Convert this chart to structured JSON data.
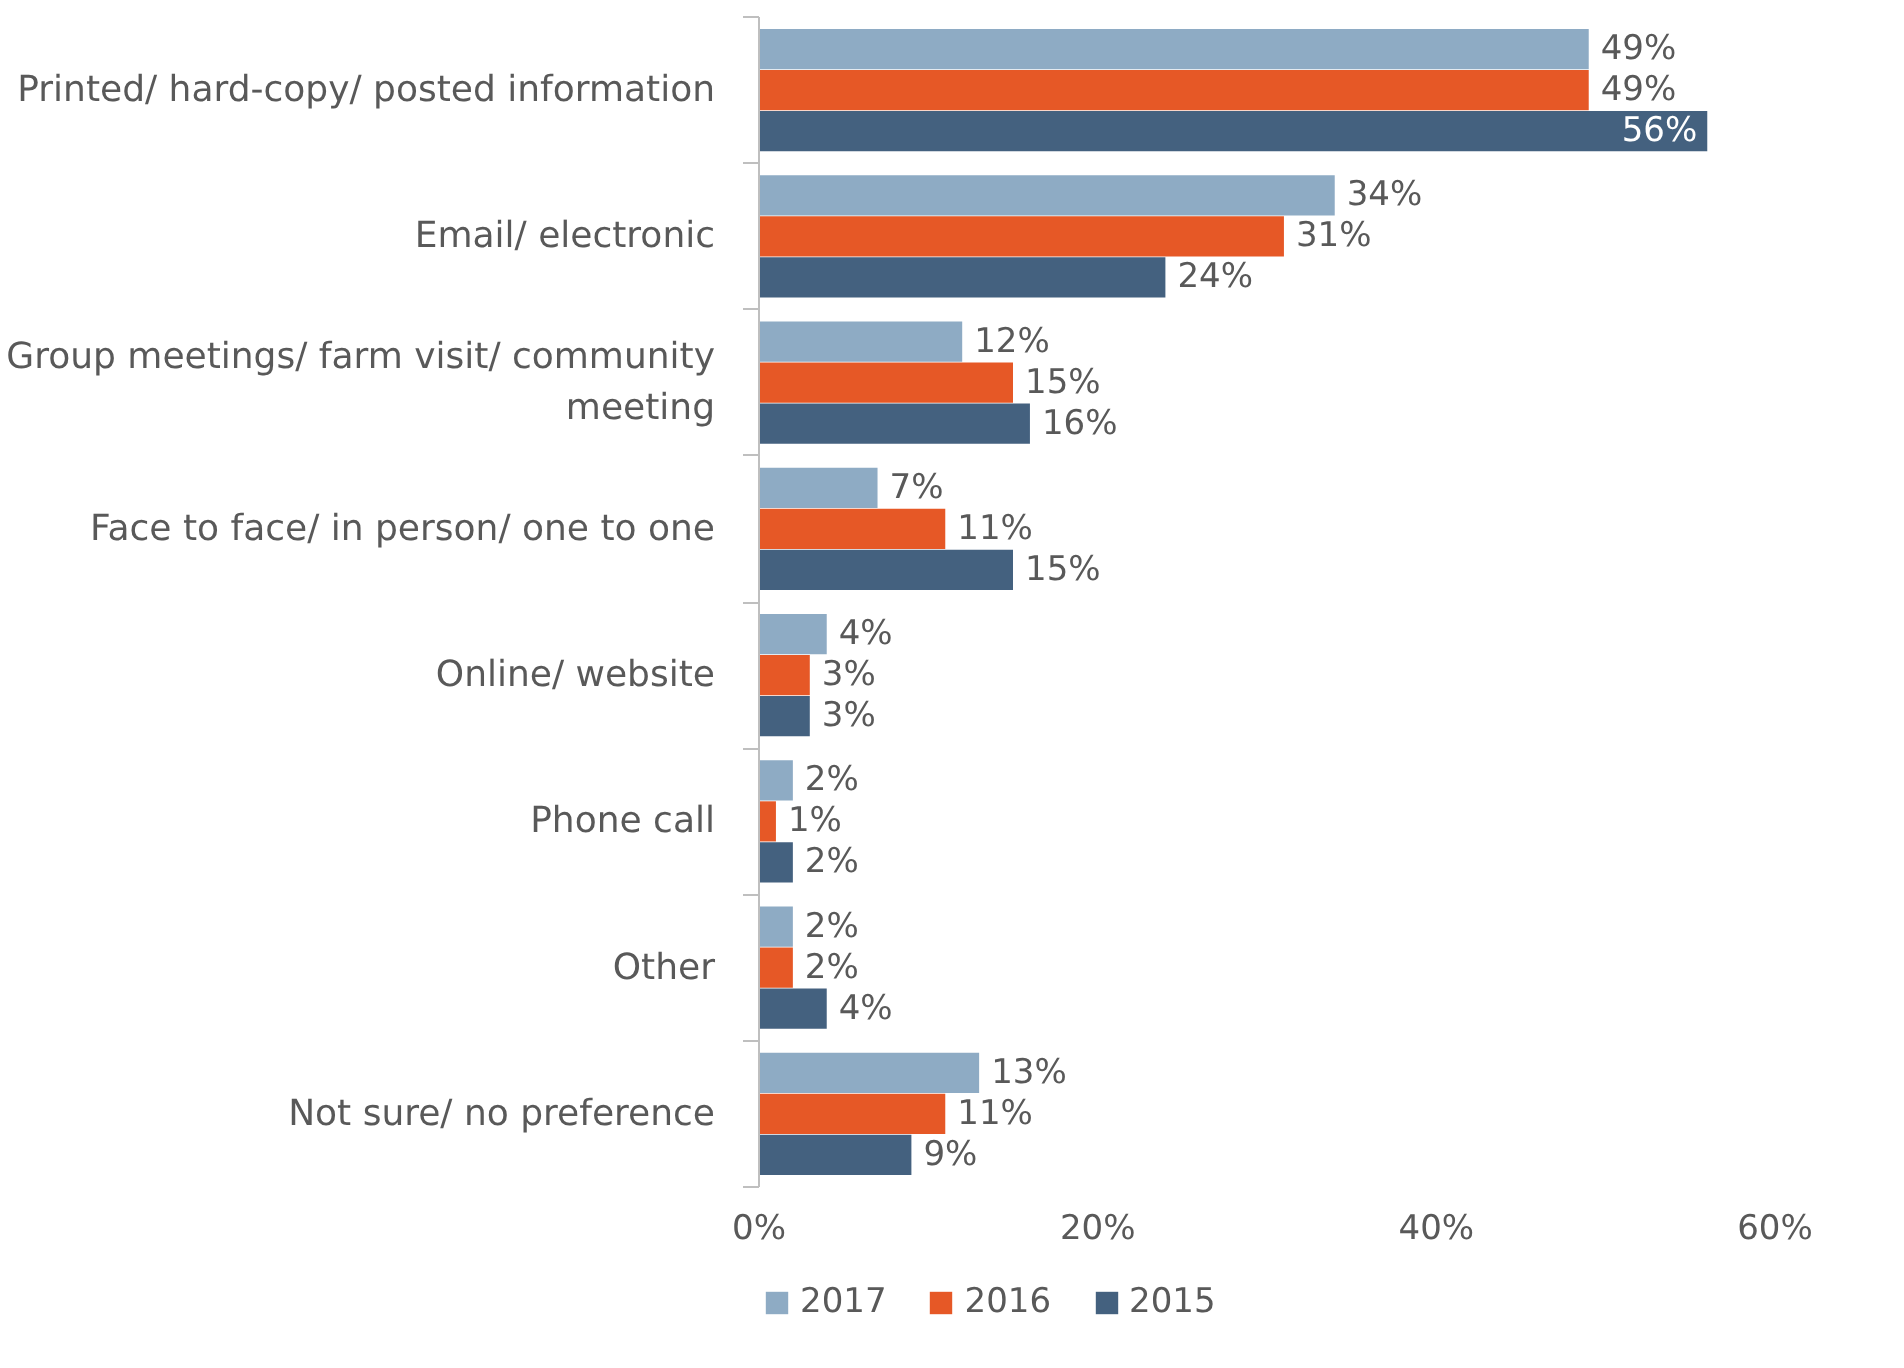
{
  "chart_data": {
    "type": "bar",
    "orientation": "horizontal",
    "categories": [
      "Printed/ hard-copy/ posted information",
      "Email/ electronic",
      "Group meetings/ farm visit/ community\nmeeting",
      "Face to face/ in person/ one to one",
      "Online/ website",
      "Phone call",
      "Other",
      "Not sure/ no preference"
    ],
    "series": [
      {
        "name": "2017",
        "color": "#8eabc4",
        "values": [
          49,
          34,
          12,
          7,
          4,
          2,
          2,
          13
        ],
        "value_labels": [
          "49%",
          "34%",
          "12%",
          "7%",
          "4%",
          "2%",
          "2%",
          "13%"
        ]
      },
      {
        "name": "2016",
        "color": "#e65826",
        "values": [
          49,
          31,
          15,
          11,
          3,
          1,
          2,
          11
        ],
        "value_labels": [
          "49%",
          "31%",
          "15%",
          "11%",
          "3%",
          "1%",
          "2%",
          "11%"
        ]
      },
      {
        "name": "2015",
        "color": "#44617f",
        "values": [
          56,
          24,
          16,
          15,
          3,
          2,
          4,
          9
        ],
        "value_labels": [
          "56%",
          "24%",
          "16%",
          "15%",
          "3%",
          "2%",
          "4%",
          "9%"
        ]
      }
    ],
    "xlim": [
      0,
      60
    ],
    "xticks": [
      {
        "value": 0,
        "label": "0%"
      },
      {
        "value": 20,
        "label": "20%"
      },
      {
        "value": 40,
        "label": "40%"
      },
      {
        "value": 60,
        "label": "60%"
      }
    ],
    "grid": false,
    "legend": "bottom"
  }
}
